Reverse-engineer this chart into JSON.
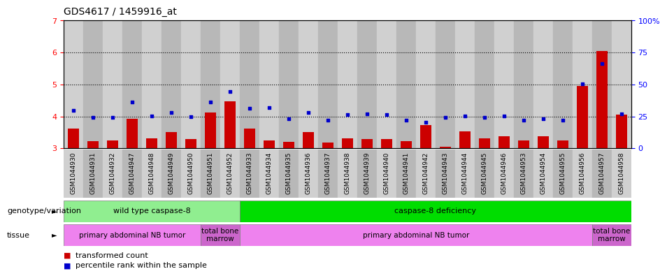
{
  "title": "GDS4617 / 1459916_at",
  "samples": [
    "GSM1044930",
    "GSM1044931",
    "GSM1044932",
    "GSM1044947",
    "GSM1044948",
    "GSM1044949",
    "GSM1044950",
    "GSM1044951",
    "GSM1044952",
    "GSM1044933",
    "GSM1044934",
    "GSM1044935",
    "GSM1044936",
    "GSM1044937",
    "GSM1044938",
    "GSM1044939",
    "GSM1044940",
    "GSM1044941",
    "GSM1044942",
    "GSM1044943",
    "GSM1044944",
    "GSM1044945",
    "GSM1044946",
    "GSM1044953",
    "GSM1044954",
    "GSM1044955",
    "GSM1044956",
    "GSM1044957",
    "GSM1044958"
  ],
  "bar_values": [
    3.62,
    3.22,
    3.25,
    3.93,
    3.32,
    3.5,
    3.28,
    4.12,
    4.47,
    3.62,
    3.25,
    3.2,
    3.5,
    3.18,
    3.3,
    3.28,
    3.28,
    3.22,
    3.72,
    3.05,
    3.52,
    3.32,
    3.38,
    3.25,
    3.38,
    3.25,
    4.95,
    6.05,
    4.05
  ],
  "scatter_values": [
    4.18,
    3.97,
    3.97,
    4.45,
    4.02,
    4.12,
    3.98,
    4.45,
    4.78,
    4.25,
    4.28,
    3.92,
    4.12,
    3.87,
    4.05,
    4.08,
    4.05,
    3.88,
    3.82,
    3.97,
    4.02,
    3.97,
    4.02,
    3.88,
    3.93,
    3.88,
    5.02,
    5.65,
    4.08
  ],
  "ylim_left": [
    3,
    7
  ],
  "ylim_right": [
    0,
    100
  ],
  "yticks_left": [
    3,
    4,
    5,
    6,
    7
  ],
  "yticks_right": [
    0,
    25,
    50,
    75,
    100
  ],
  "ytick_labels_right": [
    "0",
    "25",
    "50",
    "75",
    "100%"
  ],
  "bar_color": "#cc0000",
  "scatter_color": "#0000cc",
  "bar_width": 0.55,
  "genotype_groups": [
    {
      "label": "wild type caspase-8",
      "start": 0,
      "end": 9,
      "color": "#90ee90"
    },
    {
      "label": "caspase-8 deficiency",
      "start": 9,
      "end": 29,
      "color": "#00dd00"
    }
  ],
  "tissue_groups": [
    {
      "label": "primary abdominal NB tumor",
      "start": 0,
      "end": 7,
      "color": "#ee82ee"
    },
    {
      "label": "total bone\nmarrow",
      "start": 7,
      "end": 9,
      "color": "#cc66cc"
    },
    {
      "label": "primary abdominal NB tumor",
      "start": 9,
      "end": 27,
      "color": "#ee82ee"
    },
    {
      "label": "total bone\nmarrow",
      "start": 27,
      "end": 29,
      "color": "#cc66cc"
    }
  ],
  "genotype_label": "genotype/variation",
  "tissue_label": "tissue",
  "legend_items": [
    {
      "color": "#cc0000",
      "label": "transformed count"
    },
    {
      "color": "#0000cc",
      "label": "percentile rank within the sample"
    }
  ],
  "stripe_colors": [
    "#d0d0d0",
    "#b8b8b8"
  ]
}
